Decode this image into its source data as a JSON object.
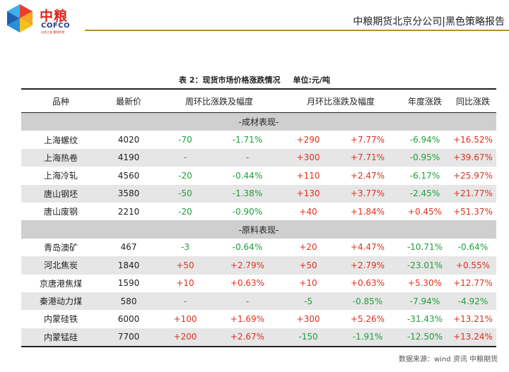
{
  "header": {
    "logo_cn": "中粮",
    "logo_en": "COFCO",
    "logo_sub": "自然之源 重塑你我",
    "title": "中粮期货北京分公司|黑色策略报告"
  },
  "caption": {
    "title": "表 2：现货市场价格涨跌情况",
    "unit": "单位:元/吨"
  },
  "columns": [
    "品种",
    "最新价",
    "周环比涨跌及幅度",
    "月环比涨跌及幅度",
    "年度涨跌",
    "同比涨跌"
  ],
  "sections": [
    {
      "label": "-成材表现-",
      "rows": [
        {
          "name": "上海螺纹",
          "price": "4020",
          "w_chg": "-70",
          "w_pct": "-1.71%",
          "m_chg": "+290",
          "m_pct": "+7.77%",
          "ytd": "-6.94%",
          "yoy": "+16.52%"
        },
        {
          "name": "上海热卷",
          "price": "4190",
          "w_chg": "-",
          "w_pct": "-",
          "m_chg": "+300",
          "m_pct": "+7.71%",
          "ytd": "-0.95%",
          "yoy": "+39.67%"
        },
        {
          "name": "上海冷轧",
          "price": "4560",
          "w_chg": "-20",
          "w_pct": "-0.44%",
          "m_chg": "+110",
          "m_pct": "+2.47%",
          "ytd": "-6.17%",
          "yoy": "+25.97%"
        },
        {
          "name": "唐山钢坯",
          "price": "3580",
          "w_chg": "-50",
          "w_pct": "-1.38%",
          "m_chg": "+130",
          "m_pct": "+3.77%",
          "ytd": "-2.45%",
          "yoy": "+21.77%"
        },
        {
          "name": "唐山废钢",
          "price": "2210",
          "w_chg": "-20",
          "w_pct": "-0.90%",
          "m_chg": "+40",
          "m_pct": "+1.84%",
          "ytd": "+0.45%",
          "yoy": "+51.37%"
        }
      ]
    },
    {
      "label": "-原料表现-",
      "rows": [
        {
          "name": "青岛澳矿",
          "price": "467",
          "w_chg": "-3",
          "w_pct": "-0.64%",
          "m_chg": "+20",
          "m_pct": "+4.47%",
          "ytd": "-10.71%",
          "yoy": "-0.64%"
        },
        {
          "name": "河北焦炭",
          "price": "1840",
          "w_chg": "+50",
          "w_pct": "+2.79%",
          "m_chg": "+50",
          "m_pct": "+2.79%",
          "ytd": "-23.01%",
          "yoy": "+0.55%"
        },
        {
          "name": "京唐港焦煤",
          "price": "1590",
          "w_chg": "+10",
          "w_pct": "+0.63%",
          "m_chg": "+10",
          "m_pct": "+0.63%",
          "ytd": "+5.30%",
          "yoy": "+12.77%"
        },
        {
          "name": "秦港动力煤",
          "price": "580",
          "w_chg": "-",
          "w_pct": "-",
          "m_chg": "-5",
          "m_pct": "-0.85%",
          "ytd": "-7.94%",
          "yoy": "-4.92%"
        },
        {
          "name": "内蒙硅铁",
          "price": "6000",
          "w_chg": "+100",
          "w_pct": "+1.69%",
          "m_chg": "+300",
          "m_pct": "+5.26%",
          "ytd": "-31.43%",
          "yoy": "+13.21%"
        },
        {
          "name": "内蒙锰硅",
          "price": "7700",
          "w_chg": "+200",
          "w_pct": "+2.67%",
          "m_chg": "-150",
          "m_pct": "-1.91%",
          "ytd": "-12.50%",
          "yoy": "+13.24%"
        }
      ]
    }
  ],
  "source": "数据来源：wind 资讯 中粮期货",
  "colors": {
    "up": "#e0301e",
    "down": "#1e9e3a",
    "accent_rule": "#b98a3a",
    "brand_red": "#d9261c",
    "brand_blue": "#1c3f8f"
  }
}
